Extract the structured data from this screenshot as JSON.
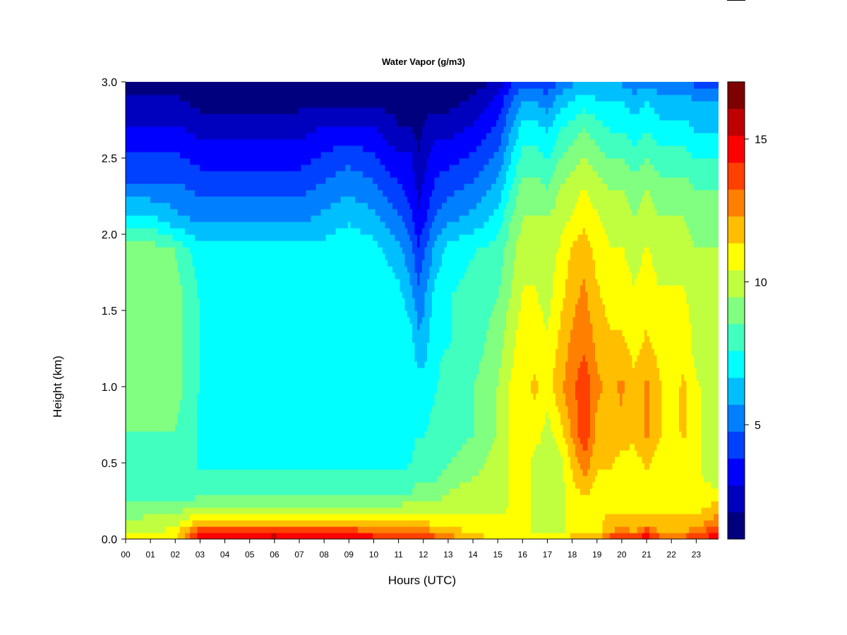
{
  "chart_data": {
    "type": "heatmap",
    "title": "Water Vapor (g/m3)",
    "xlabel": "Hours (UTC)",
    "ylabel": "Height (km)",
    "x_ticks": [
      "00",
      "01",
      "02",
      "03",
      "04",
      "05",
      "06",
      "07",
      "08",
      "09",
      "10",
      "11",
      "12",
      "13",
      "14",
      "15",
      "16",
      "17",
      "18",
      "19",
      "20",
      "21",
      "22",
      "23"
    ],
    "y_ticks": [
      0.0,
      0.5,
      1.0,
      1.5,
      2.0,
      2.5,
      3.0
    ],
    "xlim": [
      0,
      23.9
    ],
    "ylim": [
      0,
      3.0
    ],
    "colorbar": {
      "range": [
        1,
        17
      ],
      "ticks": [
        5,
        10,
        15
      ],
      "colors": [
        "#00007f",
        "#0000bf",
        "#0000ff",
        "#0040ff",
        "#0080ff",
        "#00bfff",
        "#00ffff",
        "#40ffbf",
        "#80ff80",
        "#bfff40",
        "#ffff00",
        "#ffbf00",
        "#ff8000",
        "#ff4000",
        "#ff0000",
        "#bf0000",
        "#7f0000"
      ]
    },
    "time_hours": [
      0,
      1,
      2,
      3,
      4,
      5,
      6,
      7,
      8,
      9,
      10,
      11,
      11.5,
      11.8,
      12,
      12.5,
      13,
      14,
      15,
      15.5,
      16,
      16.5,
      17,
      17.5,
      18,
      18.5,
      19,
      19.5,
      20,
      20.5,
      21,
      21.5,
      22,
      22.5,
      23,
      23.9
    ],
    "heights_km": [
      0.0,
      0.05,
      0.1,
      0.2,
      0.3,
      0.5,
      0.7,
      1.0,
      1.3,
      1.6,
      1.9,
      2.1,
      2.3,
      2.5,
      2.7,
      2.9,
      3.0
    ],
    "profiles_gm3": [
      [
        11,
        10,
        9.5,
        9,
        8,
        8,
        8.5,
        9,
        9,
        9,
        9,
        7,
        5,
        4,
        3,
        2,
        1
      ],
      [
        11,
        10,
        10,
        9,
        8,
        8,
        8.5,
        9,
        9,
        9,
        9,
        7,
        5,
        4,
        3,
        2,
        1
      ],
      [
        11,
        11,
        10,
        9,
        8,
        8,
        8.5,
        9,
        9,
        9,
        8.5,
        6,
        5,
        4,
        3,
        2,
        1
      ],
      [
        15,
        14,
        12,
        10,
        8,
        7.5,
        7.5,
        7.5,
        7.5,
        7.5,
        7,
        5.5,
        4.5,
        3.5,
        2.5,
        1.5,
        1
      ],
      [
        15,
        14,
        12,
        10,
        8,
        7.5,
        7.5,
        7.5,
        7.5,
        7.5,
        7,
        5.5,
        4.5,
        3.5,
        2.5,
        1.5,
        1
      ],
      [
        15,
        14,
        12,
        10,
        8,
        7.5,
        7.5,
        7.5,
        7.5,
        7.5,
        7,
        5.5,
        4.5,
        3.5,
        2.5,
        1.5,
        1
      ],
      [
        16,
        14,
        12,
        10,
        8,
        7.5,
        7.5,
        7.5,
        7.5,
        7.5,
        7,
        5.5,
        4.5,
        3.5,
        2.5,
        1.5,
        1
      ],
      [
        15,
        14,
        12,
        10,
        8,
        7.5,
        7.5,
        7.5,
        7.5,
        7.5,
        7,
        5.5,
        4.5,
        3.5,
        2.5,
        1.5,
        1
      ],
      [
        15,
        14,
        12,
        10,
        8,
        7.5,
        7.5,
        7.5,
        7.5,
        7.5,
        7,
        6,
        5,
        4,
        3,
        1.5,
        1
      ],
      [
        15,
        14,
        12,
        10,
        8,
        7.5,
        7.5,
        7.5,
        7.5,
        7.5,
        7.5,
        6.5,
        5.5,
        4.5,
        3,
        1.5,
        1
      ],
      [
        15,
        13,
        12,
        10,
        8,
        7.5,
        7.5,
        7.5,
        7.5,
        7.5,
        7,
        6,
        5,
        4,
        3,
        1.5,
        1
      ],
      [
        15,
        13,
        12,
        10,
        8,
        7.5,
        7.5,
        7.5,
        7.5,
        7,
        6,
        5,
        4,
        3,
        2,
        1.5,
        1
      ],
      [
        14,
        13,
        12,
        10,
        8.5,
        7.5,
        7.5,
        7.5,
        7,
        6,
        5,
        4,
        3.5,
        3,
        2,
        1.5,
        1
      ],
      [
        14,
        13,
        12,
        10,
        9,
        8,
        7.5,
        7,
        6,
        5,
        4,
        3,
        2.5,
        2,
        1.5,
        1,
        1
      ],
      [
        14,
        13,
        12,
        10,
        9,
        8,
        7.5,
        7,
        6,
        5.5,
        4.5,
        3.5,
        3,
        2.5,
        2,
        1.5,
        1
      ],
      [
        14,
        12,
        11,
        10,
        9,
        8,
        8,
        7.5,
        7.5,
        7,
        6,
        5,
        4,
        3.5,
        2.5,
        1.5,
        1
      ],
      [
        13,
        12,
        11,
        10,
        9.5,
        8.5,
        8,
        8,
        7.5,
        7.5,
        7,
        5.5,
        4.5,
        3.5,
        2.5,
        1.5,
        1
      ],
      [
        12,
        11,
        11,
        10,
        10,
        9,
        8.5,
        8.5,
        8,
        8,
        7.5,
        6,
        5,
        4,
        3,
        2,
        1.5
      ],
      [
        11,
        11,
        11,
        10,
        10,
        10,
        9.5,
        9.5,
        9,
        8.5,
        8,
        7,
        6,
        5,
        4,
        3,
        2
      ],
      [
        11,
        11,
        11,
        10.5,
        10.5,
        10.5,
        10.5,
        10.5,
        10,
        9.5,
        9,
        8.5,
        7.5,
        6.5,
        5.5,
        4.5,
        3.5
      ],
      [
        11,
        11,
        11,
        11,
        11,
        11,
        11,
        11,
        11,
        10.5,
        10,
        9.5,
        9,
        8,
        7,
        5.5,
        4.5
      ],
      [
        11,
        10,
        10,
        10,
        10,
        10,
        11,
        11.5,
        11,
        10.5,
        10,
        9.5,
        9,
        8,
        7,
        5.5,
        4.5
      ],
      [
        11,
        10,
        10,
        10,
        9.5,
        9.5,
        10,
        11,
        10.5,
        10,
        10,
        9.5,
        8.5,
        7.5,
        6.5,
        5,
        4
      ],
      [
        11,
        10,
        10,
        10,
        10,
        10,
        11,
        12,
        11.5,
        11,
        10.5,
        10,
        9.5,
        8.5,
        7.5,
        6,
        5
      ],
      [
        12,
        11,
        11,
        11,
        11,
        11.5,
        12.5,
        13,
        12.5,
        12,
        11.5,
        10.5,
        10,
        9,
        8,
        6.5,
        5.5
      ],
      [
        12,
        11,
        11,
        11,
        11.5,
        13,
        14,
        14,
        13,
        12.5,
        12,
        11,
        10.5,
        9.5,
        8.5,
        7,
        6
      ],
      [
        12,
        11,
        11,
        11,
        11,
        11.5,
        12,
        12.5,
        12,
        11.5,
        11,
        10.5,
        10,
        9,
        8,
        6.5,
        5.5
      ],
      [
        14,
        12,
        12,
        11,
        11,
        11.5,
        12,
        12,
        11.5,
        11,
        10.5,
        10,
        9.5,
        8.5,
        7.5,
        6.5,
        5.5
      ],
      [
        15,
        13,
        12,
        11,
        11,
        11,
        12,
        12.5,
        11.5,
        11,
        10.5,
        10,
        9.5,
        8.5,
        7.5,
        6.5,
        5.5
      ],
      [
        14,
        12,
        12,
        11,
        11,
        11,
        11.5,
        11.5,
        11,
        10.5,
        10,
        9.5,
        9,
        8,
        7,
        6,
        5
      ],
      [
        15,
        14,
        12,
        11,
        11,
        11.5,
        12.5,
        12.5,
        11.5,
        11,
        10.5,
        10,
        9.5,
        8.5,
        7.5,
        6.5,
        5.5
      ],
      [
        14,
        12,
        12,
        11,
        11,
        11,
        11.5,
        11.5,
        11,
        10.5,
        10,
        9.5,
        9,
        8,
        7,
        6,
        5
      ],
      [
        13,
        12,
        12,
        11,
        11,
        11,
        11,
        11,
        11,
        10.5,
        10,
        9.5,
        9,
        8,
        7,
        6,
        5
      ],
      [
        14,
        12,
        12,
        11,
        11,
        11,
        11.5,
        11.5,
        11,
        10.5,
        10,
        9.5,
        9,
        8,
        7,
        6,
        5
      ],
      [
        14,
        13,
        12,
        11,
        10.5,
        10.5,
        10.5,
        10.5,
        10,
        10,
        9.5,
        9,
        8.5,
        7.5,
        6.5,
        5.5,
        4.5
      ],
      [
        15,
        14,
        13,
        12,
        10.5,
        10,
        10,
        10,
        10,
        10,
        9.5,
        9,
        8.5,
        7.5,
        6.5,
        5.5,
        4.5
      ]
    ]
  }
}
